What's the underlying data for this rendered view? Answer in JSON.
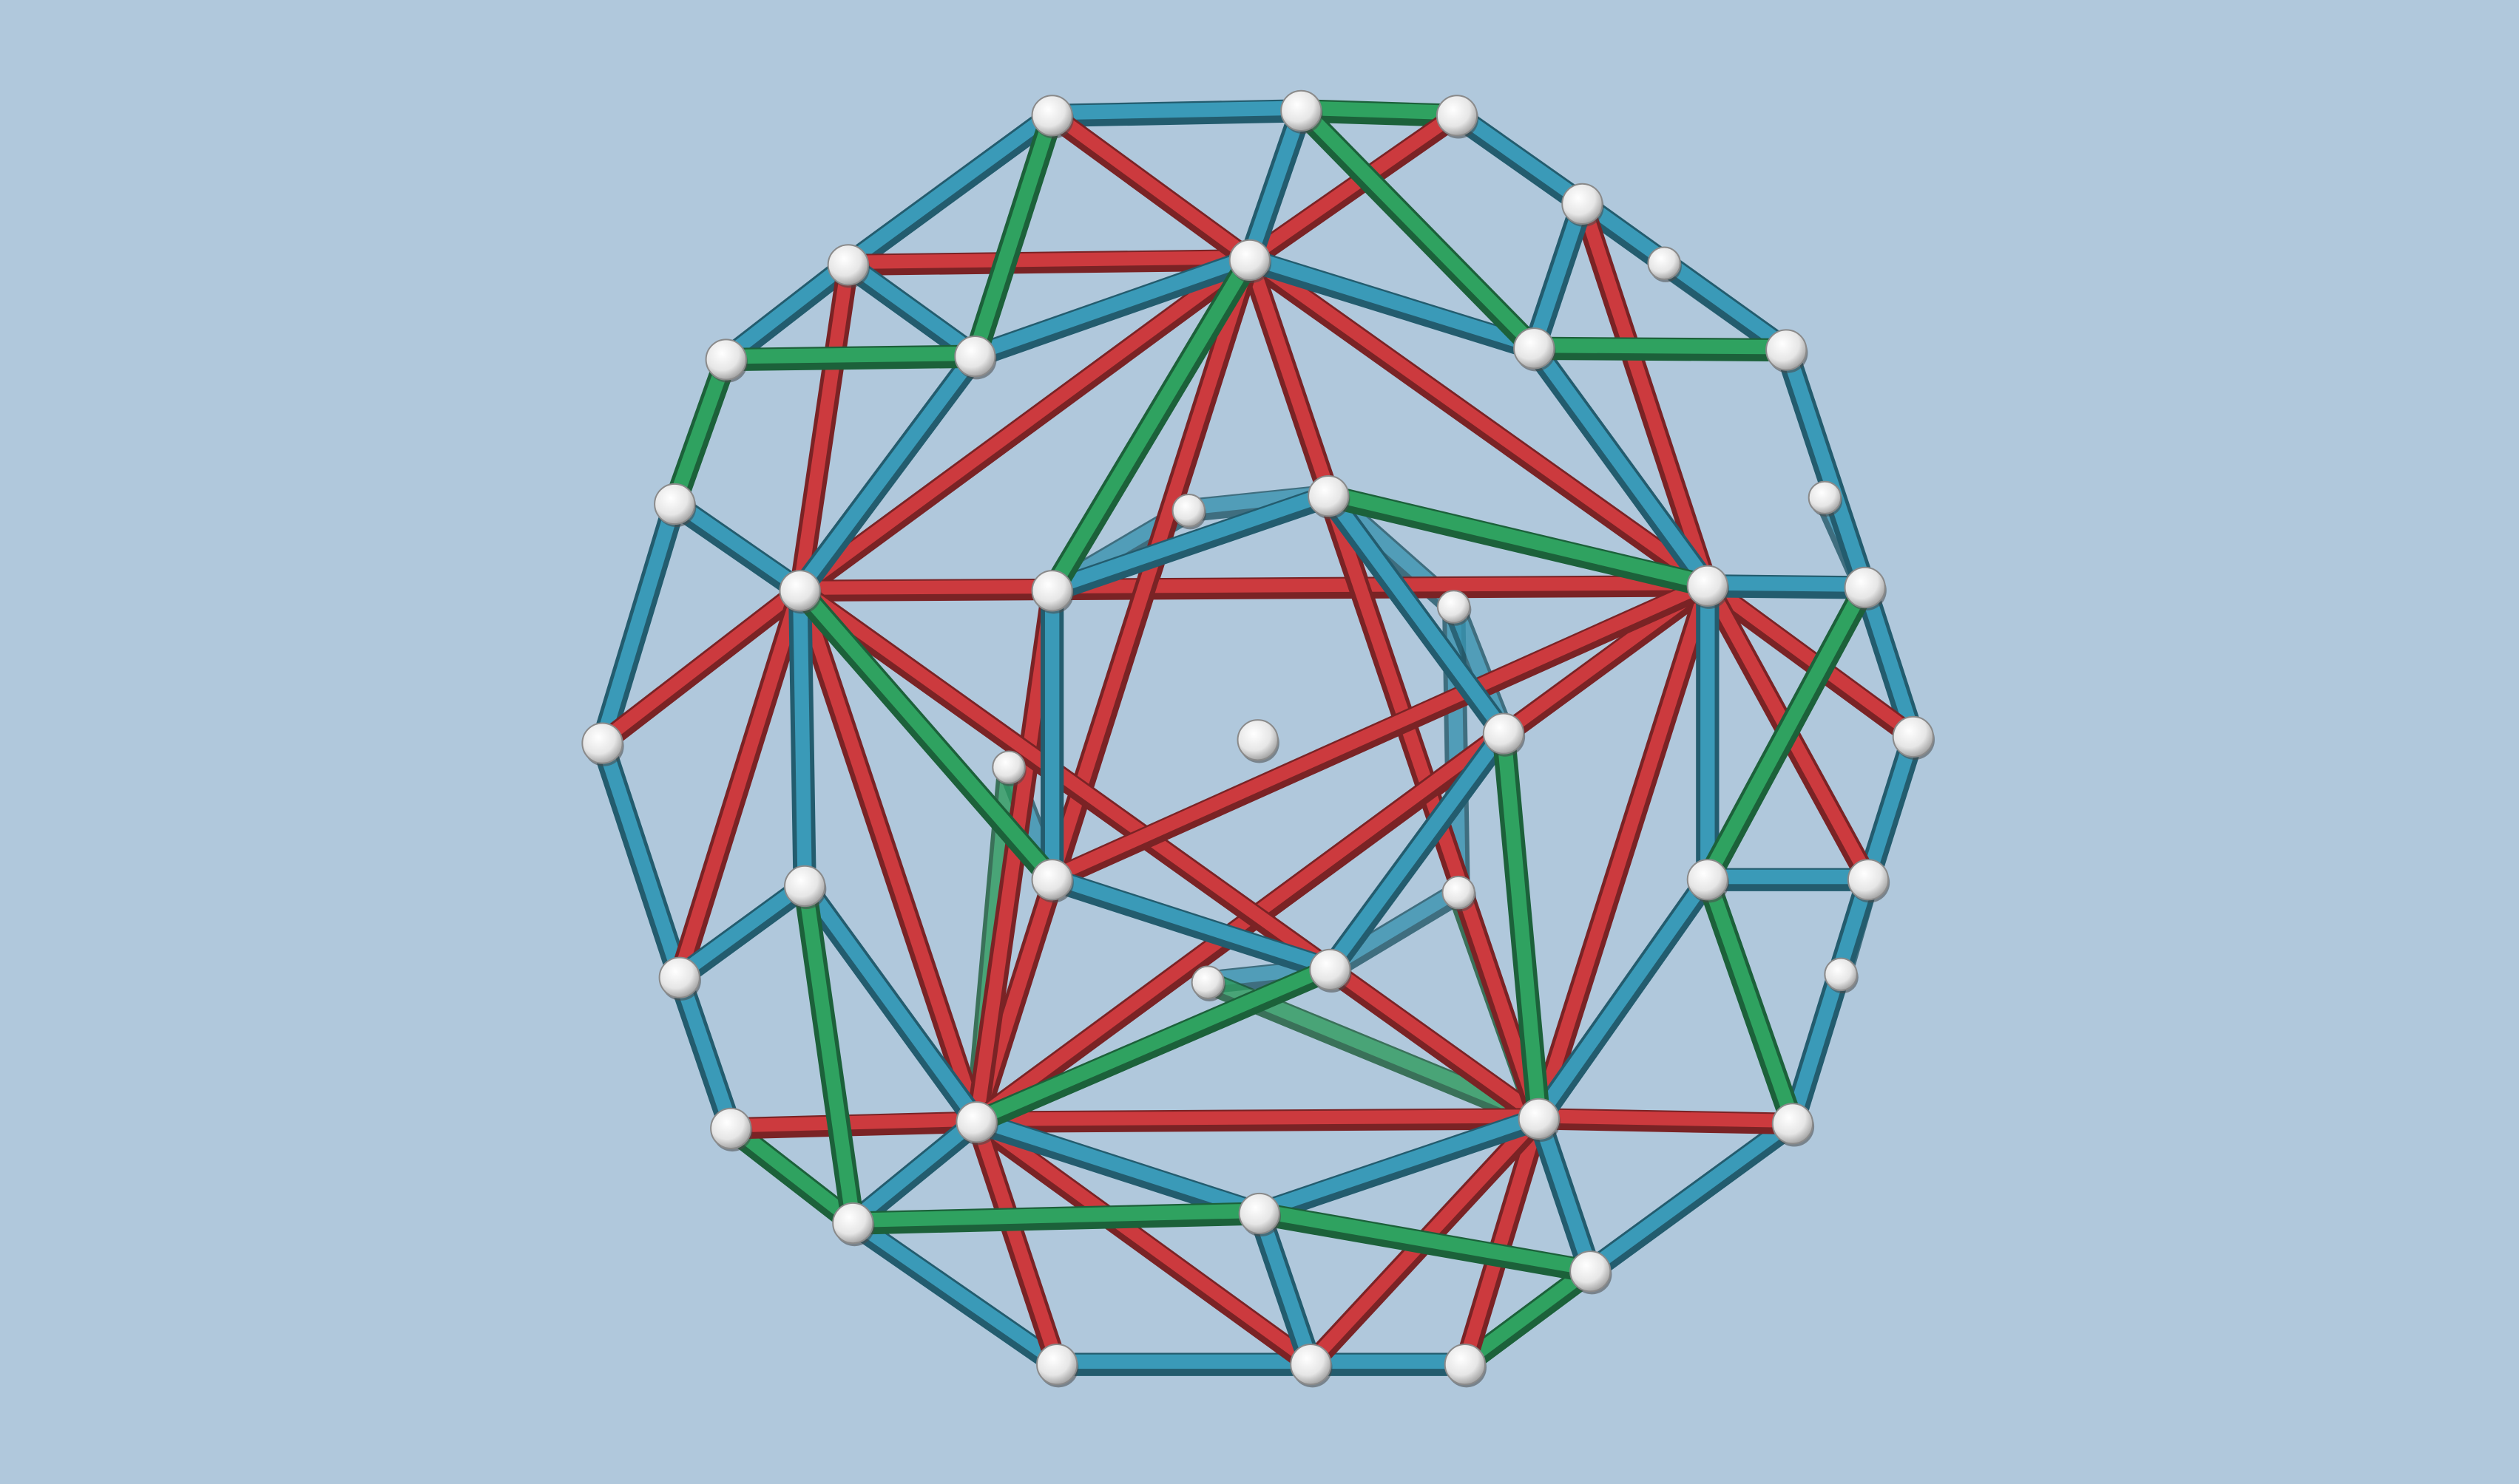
{
  "scene": {
    "background": "#b0c8dc",
    "strut_colors": {
      "blue": "#3a9ab8",
      "red": "#cc3a3e",
      "green": "#2fa260"
    },
    "ball_color": "#f2f2f2",
    "ball_shade": "#8a8a8a"
  }
}
